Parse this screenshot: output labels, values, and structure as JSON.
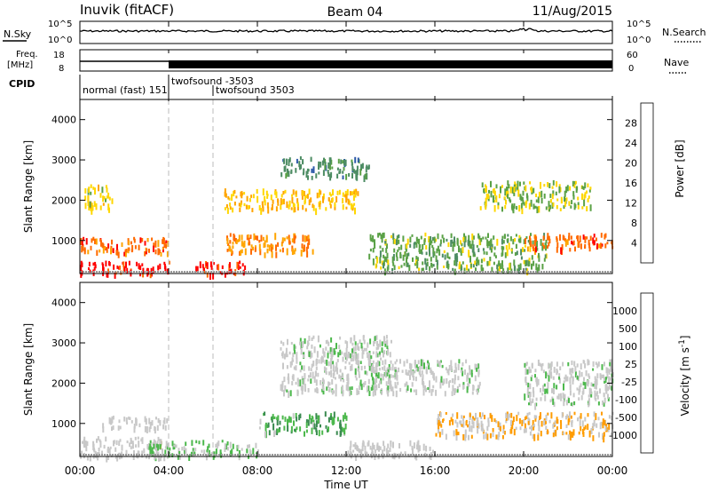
{
  "header": {
    "station": "Inuvik (fitACF)",
    "beam": "Beam 04",
    "date": "11/Aug/2015"
  },
  "panels": {
    "nsky": {
      "left_label": "N.Sky",
      "right_label": "N.Search",
      "left_ticks": [
        "10^5",
        "10^0"
      ],
      "right_ticks": [
        "10^5",
        "10^0"
      ]
    },
    "freq": {
      "left_label_1": "Freq.",
      "left_label_2": "[MHz]",
      "right_label": "Nave",
      "left_ticks": [
        "18",
        "8"
      ],
      "right_ticks": [
        "60",
        "0"
      ]
    },
    "cpid": {
      "label": "CPID",
      "segments": [
        {
          "text": "normal (fast) 151",
          "start_hour": 0
        },
        {
          "text": "twofsound -3503",
          "start_hour": 4
        },
        {
          "text": "twofsound 3503",
          "start_hour": 6
        }
      ]
    }
  },
  "axes": {
    "xlabel": "Time UT",
    "x_ticks": [
      "00:00",
      "04:00",
      "08:00",
      "12:00",
      "16:00",
      "20:00",
      "00:00"
    ],
    "xlim_hours": [
      0,
      24
    ],
    "ylabel": "Slant Range [km]",
    "y_ticks": [
      1000,
      2000,
      3000,
      4000
    ],
    "ylim_km": [
      180,
      4500
    ]
  },
  "colors": {
    "power_scale": [
      "#0000ff",
      "#2c59a8",
      "#4d8c63",
      "#5aa146",
      "#ffd700",
      "#ffa500",
      "#ff6a00",
      "#ff0000"
    ],
    "velocity_scale": [
      "#ff0000",
      "#ff5a00",
      "#ff9c00",
      "#c8c8c8",
      "#c8c8c8",
      "#4cb84c",
      "#3a8a50",
      "#2c59a8",
      "#1f3fc0"
    ]
  },
  "chart_data": [
    {
      "type": "heatmap",
      "title": "",
      "xlabel": "Time UT",
      "ylabel": "Slant Range [km]",
      "colorbar_label": "Power [dB]",
      "colorbar_ticks": [
        "4",
        "8",
        "12",
        "16",
        "20",
        "24",
        "28"
      ],
      "clim": [
        0,
        32
      ],
      "xlim_hours": [
        0,
        24
      ],
      "ylim_km": [
        180,
        4500
      ],
      "features": [
        {
          "t": [
            0,
            4
          ],
          "r": [
            180,
            500
          ],
          "value": 30
        },
        {
          "t": [
            0,
            4
          ],
          "r": [
            700,
            1100
          ],
          "value": 26
        },
        {
          "t": [
            0.2,
            1.5
          ],
          "r": [
            1800,
            2400
          ],
          "value": 18
        },
        {
          "t": [
            5.2,
            7.5
          ],
          "r": [
            180,
            500
          ],
          "value": 30
        },
        {
          "t": [
            6.5,
            10.5
          ],
          "r": [
            700,
            1200
          ],
          "value": 24
        },
        {
          "t": [
            6.5,
            12.5
          ],
          "r": [
            1800,
            2300
          ],
          "value": 20
        },
        {
          "t": [
            9,
            13
          ],
          "r": [
            2600,
            3100
          ],
          "value": 10
        },
        {
          "t": [
            13,
            21
          ],
          "r": [
            300,
            1200
          ],
          "value": 14
        },
        {
          "t": [
            20,
            24
          ],
          "r": [
            800,
            1200
          ],
          "value": 26
        },
        {
          "t": [
            18,
            23
          ],
          "r": [
            1800,
            2500
          ],
          "value": 16
        }
      ]
    },
    {
      "type": "heatmap",
      "title": "",
      "xlabel": "Time UT",
      "ylabel": "Slant Range [km]",
      "colorbar_label": "Velocity [m s^-1]",
      "colorbar_ticks": [
        "1000",
        "500",
        "100",
        "25",
        "-25",
        "-100",
        "-500",
        "-1000"
      ],
      "clim": [
        -1200,
        1200
      ],
      "xlim_hours": [
        0,
        24
      ],
      "ylim_km": [
        180,
        4500
      ],
      "features": [
        {
          "t": [
            0,
            4
          ],
          "r": [
            180,
            700
          ],
          "value": -200
        },
        {
          "t": [
            1,
            4
          ],
          "r": [
            900,
            1200
          ],
          "value": -150
        },
        {
          "t": [
            3,
            8
          ],
          "r": [
            200,
            600
          ],
          "value": 150
        },
        {
          "t": [
            8,
            12
          ],
          "r": [
            800,
            1300
          ],
          "value": 300
        },
        {
          "t": [
            9,
            14
          ],
          "r": [
            1800,
            3200
          ],
          "value": 0
        },
        {
          "t": [
            13,
            18
          ],
          "r": [
            1800,
            2600
          ],
          "value": 0
        },
        {
          "t": [
            16,
            24
          ],
          "r": [
            700,
            1300
          ],
          "value": -400
        },
        {
          "t": [
            12,
            16
          ],
          "r": [
            200,
            600
          ],
          "value": -120
        },
        {
          "t": [
            20,
            24
          ],
          "r": [
            1500,
            2600
          ],
          "value": 0
        }
      ]
    }
  ]
}
